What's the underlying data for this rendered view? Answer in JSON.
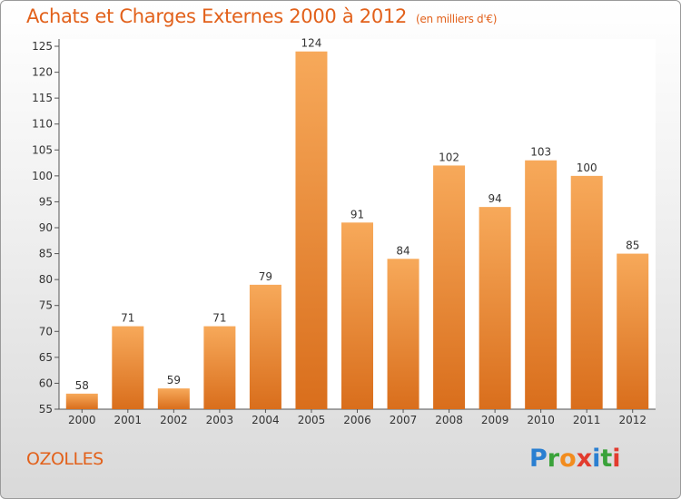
{
  "title": "Achats et Charges Externes 2000 à 2012",
  "subtitle": "(en milliers d'€)",
  "commune": "OZOLLES",
  "logo": {
    "letters": [
      "P",
      "r",
      "o",
      "x",
      "i",
      "t",
      "i"
    ],
    "colors": [
      "#2a7fd1",
      "#3aa23a",
      "#f28c1e",
      "#e23b2e",
      "#2a7fd1",
      "#3aa23a",
      "#e23b2e"
    ]
  },
  "colors": {
    "bar_top": "#f7a95a",
    "bar_bottom": "#d96e1c",
    "title": "#e2611b"
  },
  "chart_data": {
    "type": "bar",
    "title": "Achats et Charges Externes 2000 à 2012",
    "subtitle": "(en milliers d'€)",
    "categories": [
      "2000",
      "2001",
      "2002",
      "2003",
      "2004",
      "2005",
      "2006",
      "2007",
      "2008",
      "2009",
      "2010",
      "2011",
      "2012"
    ],
    "values": [
      58,
      71,
      59,
      71,
      79,
      124,
      91,
      84,
      102,
      94,
      103,
      100,
      85
    ],
    "ylim": [
      55,
      125
    ],
    "yticks": [
      55,
      60,
      65,
      70,
      75,
      80,
      85,
      90,
      95,
      100,
      105,
      110,
      115,
      120,
      125
    ],
    "grid": false,
    "xlabel": "",
    "ylabel": ""
  }
}
